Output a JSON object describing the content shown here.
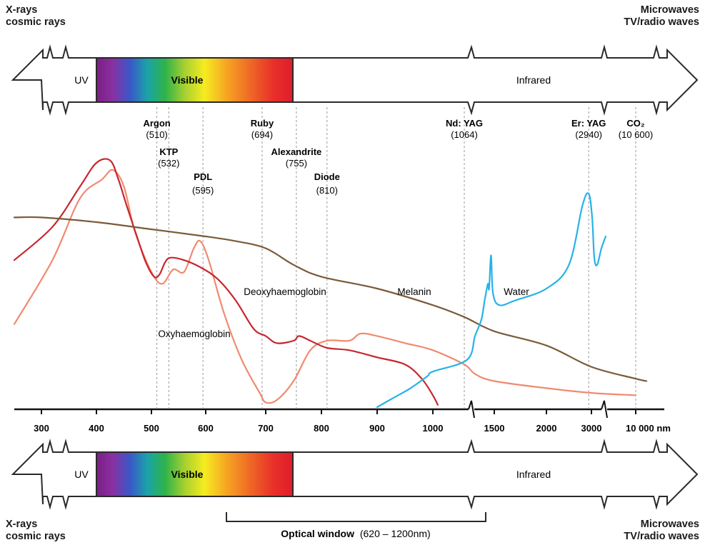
{
  "corners": {
    "top_left": [
      "X-rays",
      "cosmic rays"
    ],
    "top_right": [
      "Microwaves",
      "TV/radio waves"
    ],
    "bottom_left": [
      "X-rays",
      "cosmic rays"
    ],
    "bottom_right": [
      "Microwaves",
      "TV/radio waves"
    ]
  },
  "bands": {
    "uv": "UV",
    "visible": "Visible",
    "infrared": "Infrared"
  },
  "colors": {
    "oxyhaemoglobin": "#f08a70",
    "deoxyhaemoglobin": "#c8262e",
    "melanin": "#7b5a3a",
    "water": "#26b3e6"
  },
  "optical_window": {
    "label": "Optical window",
    "range": "(620 – 1200nm)"
  },
  "chart_data": {
    "type": "line",
    "title": "",
    "xlabel": "",
    "ylabel": "",
    "x_scale": "piecewise (linear 270–1000 nm, compressed infrared)",
    "grid": false,
    "xticks": [
      "300",
      "400",
      "500",
      "600",
      "700",
      "800",
      "900",
      "1000",
      "1500",
      "2000",
      "3000",
      "10 000 nm"
    ],
    "lasers": [
      {
        "name": "Argon",
        "wavelength": "(510)",
        "nm": 510
      },
      {
        "name": "KTP",
        "wavelength": "(532)",
        "nm": 532
      },
      {
        "name": "PDL",
        "wavelength": "(595)",
        "nm": 595
      },
      {
        "name": "Ruby",
        "wavelength": "(694)",
        "nm": 694
      },
      {
        "name": "Alexandrite",
        "wavelength": "(755)",
        "nm": 755
      },
      {
        "name": "Diode",
        "wavelength": "(810)",
        "nm": 810
      },
      {
        "name": "Nd: YAG",
        "wavelength": "(1064)",
        "nm": 1064
      },
      {
        "name": "Er: YAG",
        "wavelength": "(2940)",
        "nm": 2940
      },
      {
        "name": "CO₂",
        "wavelength": "(10 600)",
        "nm": 10600
      }
    ],
    "series": [
      {
        "name": "Oxyhaemoglobin",
        "key": "oxyhaemoglobin",
        "points": [
          [
            270,
            0.35
          ],
          [
            320,
            0.62
          ],
          [
            370,
            0.88
          ],
          [
            410,
            0.96
          ],
          [
            430,
            1.0
          ],
          [
            450,
            0.93
          ],
          [
            470,
            0.74
          ],
          [
            500,
            0.57
          ],
          [
            520,
            0.52
          ],
          [
            540,
            0.58
          ],
          [
            560,
            0.57
          ],
          [
            578,
            0.67
          ],
          [
            590,
            0.7
          ],
          [
            605,
            0.62
          ],
          [
            630,
            0.4
          ],
          [
            660,
            0.2
          ],
          [
            690,
            0.06
          ],
          [
            700,
            0.02
          ],
          [
            720,
            0.03
          ],
          [
            750,
            0.11
          ],
          [
            780,
            0.24
          ],
          [
            810,
            0.28
          ],
          [
            850,
            0.28
          ],
          [
            870,
            0.31
          ],
          [
            900,
            0.3
          ],
          [
            950,
            0.27
          ],
          [
            1000,
            0.24
          ],
          [
            1064,
            0.18
          ],
          [
            1200,
            0.14
          ],
          [
            1500,
            0.11
          ],
          [
            2000,
            0.08
          ],
          [
            3000,
            0.06
          ],
          [
            10600,
            0.05
          ]
        ]
      },
      {
        "name": "Deoxyhaemoglobin",
        "key": "deoxyhaemoglobin",
        "points": [
          [
            270,
            0.62
          ],
          [
            320,
            0.76
          ],
          [
            370,
            0.93
          ],
          [
            400,
            1.03
          ],
          [
            425,
            1.04
          ],
          [
            440,
            0.96
          ],
          [
            455,
            0.85
          ],
          [
            475,
            0.71
          ],
          [
            490,
            0.61
          ],
          [
            505,
            0.55
          ],
          [
            515,
            0.56
          ],
          [
            525,
            0.61
          ],
          [
            535,
            0.63
          ],
          [
            560,
            0.62
          ],
          [
            590,
            0.59
          ],
          [
            620,
            0.54
          ],
          [
            650,
            0.45
          ],
          [
            680,
            0.33
          ],
          [
            700,
            0.3
          ],
          [
            720,
            0.27
          ],
          [
            750,
            0.28
          ],
          [
            760,
            0.3
          ],
          [
            780,
            0.28
          ],
          [
            810,
            0.25
          ],
          [
            850,
            0.24
          ],
          [
            900,
            0.21
          ],
          [
            950,
            0.18
          ],
          [
            980,
            0.12
          ],
          [
            1000,
            0.05
          ],
          [
            1010,
            0.01
          ]
        ]
      },
      {
        "name": "Melanin",
        "key": "melanin",
        "points": [
          [
            270,
            0.8
          ],
          [
            300,
            0.8
          ],
          [
            400,
            0.78
          ],
          [
            500,
            0.75
          ],
          [
            600,
            0.72
          ],
          [
            650,
            0.7
          ],
          [
            700,
            0.67
          ],
          [
            750,
            0.6
          ],
          [
            800,
            0.55
          ],
          [
            900,
            0.5
          ],
          [
            1000,
            0.43
          ],
          [
            1064,
            0.38
          ],
          [
            1500,
            0.32
          ],
          [
            2000,
            0.26
          ],
          [
            3000,
            0.17
          ],
          [
            10600,
            0.12
          ],
          [
            12000,
            0.11
          ]
        ]
      },
      {
        "name": "Water",
        "key": "water",
        "points": [
          [
            900,
            0.0
          ],
          [
            930,
            0.04
          ],
          [
            960,
            0.08
          ],
          [
            990,
            0.13
          ],
          [
            1000,
            0.15
          ],
          [
            1100,
            0.2
          ],
          [
            1200,
            0.3
          ],
          [
            1300,
            0.37
          ],
          [
            1350,
            0.45
          ],
          [
            1400,
            0.52
          ],
          [
            1420,
            0.5
          ],
          [
            1450,
            0.64
          ],
          [
            1480,
            0.48
          ],
          [
            1550,
            0.43
          ],
          [
            1700,
            0.45
          ],
          [
            2000,
            0.5
          ],
          [
            2500,
            0.6
          ],
          [
            2800,
            0.85
          ],
          [
            2940,
            0.9
          ],
          [
            3050,
            0.8
          ],
          [
            3200,
            0.63
          ],
          [
            3400,
            0.6
          ],
          [
            3700,
            0.67
          ],
          [
            4000,
            0.72
          ]
        ]
      }
    ],
    "curve_labels": [
      "Oxyhaemoglobin",
      "Deoxyhaemoglobin",
      "Melanin",
      "Water"
    ]
  }
}
